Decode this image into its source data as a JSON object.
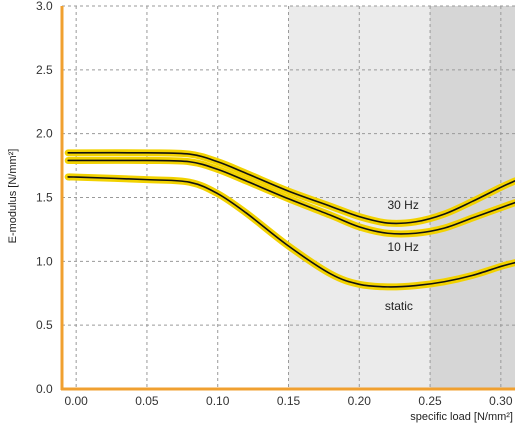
{
  "chart_data": {
    "type": "line",
    "title": "",
    "xlabel": "specific load [N/mm²]",
    "ylabel": "E-modulus [N/mm²]",
    "xlim": [
      -0.01,
      0.31
    ],
    "ylim": [
      0.0,
      3.0
    ],
    "x_ticks": [
      "0.00",
      "0.05",
      "0.10",
      "0.15",
      "0.20",
      "0.25",
      "0.30"
    ],
    "y_ticks": [
      "0.0",
      "0.5",
      "1.0",
      "1.5",
      "2.0",
      "2.5",
      "3.0"
    ],
    "grid": true,
    "shaded_regions": [
      {
        "x_start": 0.15,
        "x_end": 0.25,
        "color": "#ebebeb"
      },
      {
        "x_start": 0.25,
        "x_end": 0.31,
        "color": "#d6d6d6"
      }
    ],
    "colors": {
      "axis": "#f0a030",
      "curve_glow": "#f2d200",
      "curve": "#111111"
    },
    "series": [
      {
        "name": "30 Hz",
        "x": [
          -0.005,
          0.0,
          0.05,
          0.08,
          0.1,
          0.12,
          0.15,
          0.18,
          0.2,
          0.22,
          0.24,
          0.26,
          0.28,
          0.3,
          0.31
        ],
        "y": [
          1.85,
          1.85,
          1.85,
          1.84,
          1.78,
          1.69,
          1.55,
          1.43,
          1.35,
          1.3,
          1.31,
          1.37,
          1.47,
          1.58,
          1.63
        ]
      },
      {
        "name": "10 Hz",
        "x": [
          -0.005,
          0.0,
          0.05,
          0.08,
          0.1,
          0.12,
          0.15,
          0.18,
          0.2,
          0.22,
          0.24,
          0.26,
          0.28,
          0.3,
          0.31
        ],
        "y": [
          1.79,
          1.79,
          1.79,
          1.78,
          1.72,
          1.63,
          1.49,
          1.36,
          1.27,
          1.22,
          1.22,
          1.26,
          1.34,
          1.42,
          1.46
        ]
      },
      {
        "name": "static",
        "x": [
          -0.005,
          0.0,
          0.05,
          0.08,
          0.1,
          0.12,
          0.15,
          0.18,
          0.2,
          0.22,
          0.24,
          0.26,
          0.28,
          0.3,
          0.31
        ],
        "y": [
          1.66,
          1.66,
          1.64,
          1.62,
          1.53,
          1.38,
          1.12,
          0.9,
          0.82,
          0.8,
          0.81,
          0.84,
          0.89,
          0.96,
          0.99
        ]
      }
    ],
    "annotations": [
      {
        "text": "30 Hz",
        "x": 0.231,
        "y": 1.41
      },
      {
        "text": "10 Hz",
        "x": 0.231,
        "y": 1.08
      },
      {
        "text": "static",
        "x": 0.228,
        "y": 0.62
      }
    ]
  }
}
